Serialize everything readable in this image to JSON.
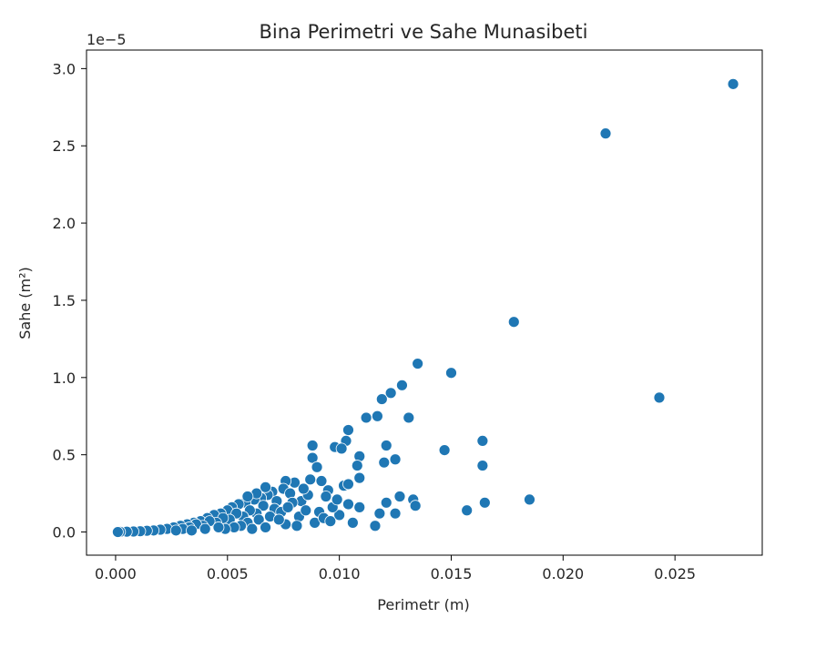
{
  "chart_data": {
    "type": "scatter",
    "title": "Bina Perimetri ve Sahe Munasibeti",
    "xlabel": "Perimetr (m)",
    "ylabel": "Sahe (m²)",
    "y_offset_label": "1e−5",
    "y_multiplier": 1e-05,
    "xlim": [
      -0.0013,
      0.0289
    ],
    "ylim": [
      -1.5e-06,
      3.12e-05
    ],
    "x_ticks": [
      0.0,
      0.005,
      0.01,
      0.015,
      0.02,
      0.025
    ],
    "x_tick_labels": [
      "0.000",
      "0.005",
      "0.010",
      "0.015",
      "0.020",
      "0.025"
    ],
    "y_ticks": [
      0.0,
      5e-06,
      1e-05,
      1.5e-05,
      2e-05,
      2.5e-05,
      3e-05
    ],
    "y_tick_labels": [
      "0.0",
      "0.5",
      "1.0",
      "1.5",
      "2.0",
      "2.5",
      "3.0"
    ],
    "grid": false,
    "legend": "none",
    "marker_color": "#1f77b4",
    "marker_edge": "#ffffff",
    "points": [
      {
        "x": 0.0276,
        "y": 2.9e-05
      },
      {
        "x": 0.0219,
        "y": 2.58e-05
      },
      {
        "x": 0.0178,
        "y": 1.36e-05
      },
      {
        "x": 0.0243,
        "y": 8.7e-06
      },
      {
        "x": 0.0135,
        "y": 1.09e-05
      },
      {
        "x": 0.015,
        "y": 1.03e-05
      },
      {
        "x": 0.0128,
        "y": 9.5e-06
      },
      {
        "x": 0.0123,
        "y": 9e-06
      },
      {
        "x": 0.0119,
        "y": 8.6e-06
      },
      {
        "x": 0.0131,
        "y": 7.4e-06
      },
      {
        "x": 0.0117,
        "y": 7.5e-06
      },
      {
        "x": 0.0112,
        "y": 7.4e-06
      },
      {
        "x": 0.0104,
        "y": 6.6e-06
      },
      {
        "x": 0.0103,
        "y": 5.9e-06
      },
      {
        "x": 0.0088,
        "y": 5.6e-06
      },
      {
        "x": 0.0098,
        "y": 5.5e-06
      },
      {
        "x": 0.0101,
        "y": 5.4e-06
      },
      {
        "x": 0.0121,
        "y": 5.6e-06
      },
      {
        "x": 0.0164,
        "y": 5.9e-06
      },
      {
        "x": 0.0147,
        "y": 5.3e-06
      },
      {
        "x": 0.0109,
        "y": 4.9e-06
      },
      {
        "x": 0.0088,
        "y": 4.8e-06
      },
      {
        "x": 0.0125,
        "y": 4.7e-06
      },
      {
        "x": 0.012,
        "y": 4.5e-06
      },
      {
        "x": 0.0164,
        "y": 4.3e-06
      },
      {
        "x": 0.0108,
        "y": 4.3e-06
      },
      {
        "x": 0.009,
        "y": 4.2e-06
      },
      {
        "x": 0.0109,
        "y": 3.5e-06
      },
      {
        "x": 0.0087,
        "y": 3.4e-06
      },
      {
        "x": 0.0092,
        "y": 3.3e-06
      },
      {
        "x": 0.0102,
        "y": 3e-06
      },
      {
        "x": 0.0104,
        "y": 3.1e-06
      },
      {
        "x": 0.0095,
        "y": 2.7e-06
      },
      {
        "x": 0.0127,
        "y": 2.3e-06
      },
      {
        "x": 0.0133,
        "y": 2.1e-06
      },
      {
        "x": 0.0134,
        "y": 1.7e-06
      },
      {
        "x": 0.0121,
        "y": 1.9e-06
      },
      {
        "x": 0.0104,
        "y": 1.8e-06
      },
      {
        "x": 0.0109,
        "y": 1.6e-06
      },
      {
        "x": 0.0165,
        "y": 1.9e-06
      },
      {
        "x": 0.0185,
        "y": 2.1e-06
      },
      {
        "x": 0.0157,
        "y": 1.4e-06
      },
      {
        "x": 0.0125,
        "y": 1.2e-06
      },
      {
        "x": 0.0118,
        "y": 1.2e-06
      },
      {
        "x": 0.01,
        "y": 1.1e-06
      },
      {
        "x": 0.0091,
        "y": 1.3e-06
      },
      {
        "x": 0.0097,
        "y": 1.6e-06
      },
      {
        "x": 0.0116,
        "y": 4e-07
      },
      {
        "x": 0.0106,
        "y": 6e-07
      },
      {
        "x": 0.0083,
        "y": 2e-06
      },
      {
        "x": 0.008,
        "y": 3.2e-06
      },
      {
        "x": 0.0076,
        "y": 3.3e-06
      },
      {
        "x": 0.0075,
        "y": 2.8e-06
      },
      {
        "x": 0.007,
        "y": 2.6e-06
      },
      {
        "x": 0.0068,
        "y": 2.4e-06
      },
      {
        "x": 0.0065,
        "y": 2.2e-06
      },
      {
        "x": 0.0062,
        "y": 2.1e-06
      },
      {
        "x": 0.0058,
        "y": 1.9e-06
      },
      {
        "x": 0.0055,
        "y": 1.8e-06
      },
      {
        "x": 0.0052,
        "y": 1.6e-06
      },
      {
        "x": 0.005,
        "y": 1.4e-06
      },
      {
        "x": 0.0047,
        "y": 1.2e-06
      },
      {
        "x": 0.0044,
        "y": 1.1e-06
      },
      {
        "x": 0.0041,
        "y": 9e-07
      },
      {
        "x": 0.0038,
        "y": 7e-07
      },
      {
        "x": 0.0035,
        "y": 6e-07
      },
      {
        "x": 0.0032,
        "y": 5e-07
      },
      {
        "x": 0.0029,
        "y": 4e-07
      },
      {
        "x": 0.0026,
        "y": 3e-07
      },
      {
        "x": 0.0023,
        "y": 2e-07
      },
      {
        "x": 0.002,
        "y": 1.5e-07
      },
      {
        "x": 0.0017,
        "y": 1e-07
      },
      {
        "x": 0.0014,
        "y": 8e-08
      },
      {
        "x": 0.0011,
        "y": 5e-08
      },
      {
        "x": 0.0008,
        "y": 3e-08
      },
      {
        "x": 0.0005,
        "y": 2e-08
      },
      {
        "x": 0.0002,
        "y": 1e-08
      },
      {
        "x": 0.0001,
        "y": 0.0
      },
      {
        "x": 0.0072,
        "y": 2e-06
      },
      {
        "x": 0.0071,
        "y": 1.5e-06
      },
      {
        "x": 0.0066,
        "y": 1.7e-06
      },
      {
        "x": 0.0063,
        "y": 1.2e-06
      },
      {
        "x": 0.006,
        "y": 1.4e-06
      },
      {
        "x": 0.0057,
        "y": 1e-06
      },
      {
        "x": 0.0054,
        "y": 1.2e-06
      },
      {
        "x": 0.0051,
        "y": 8e-07
      },
      {
        "x": 0.0048,
        "y": 9e-07
      },
      {
        "x": 0.0045,
        "y": 6e-07
      },
      {
        "x": 0.0042,
        "y": 7e-07
      },
      {
        "x": 0.0039,
        "y": 4e-07
      },
      {
        "x": 0.0036,
        "y": 5e-07
      },
      {
        "x": 0.0033,
        "y": 3e-07
      },
      {
        "x": 0.003,
        "y": 2e-07
      },
      {
        "x": 0.0027,
        "y": 1e-07
      },
      {
        "x": 0.0078,
        "y": 2.5e-06
      },
      {
        "x": 0.0079,
        "y": 1.9e-06
      },
      {
        "x": 0.0074,
        "y": 1.3e-06
      },
      {
        "x": 0.0069,
        "y": 1e-06
      },
      {
        "x": 0.0064,
        "y": 8e-07
      },
      {
        "x": 0.0059,
        "y": 6e-07
      },
      {
        "x": 0.0056,
        "y": 4e-07
      },
      {
        "x": 0.0053,
        "y": 3e-07
      },
      {
        "x": 0.0049,
        "y": 2e-07
      },
      {
        "x": 0.0082,
        "y": 1e-06
      },
      {
        "x": 0.0085,
        "y": 1.4e-06
      },
      {
        "x": 0.0086,
        "y": 2.4e-06
      },
      {
        "x": 0.0081,
        "y": 4e-07
      },
      {
        "x": 0.0076,
        "y": 5e-07
      },
      {
        "x": 0.0073,
        "y": 8e-07
      },
      {
        "x": 0.0067,
        "y": 3e-07
      },
      {
        "x": 0.0061,
        "y": 2e-07
      },
      {
        "x": 0.0046,
        "y": 3e-07
      },
      {
        "x": 0.004,
        "y": 2e-07
      },
      {
        "x": 0.0034,
        "y": 1e-07
      },
      {
        "x": 0.0089,
        "y": 6e-07
      },
      {
        "x": 0.0093,
        "y": 9e-07
      },
      {
        "x": 0.0096,
        "y": 7e-07
      },
      {
        "x": 0.0099,
        "y": 2.1e-06
      },
      {
        "x": 0.0094,
        "y": 2.3e-06
      },
      {
        "x": 0.0077,
        "y": 1.6e-06
      },
      {
        "x": 0.0084,
        "y": 2.8e-06
      },
      {
        "x": 0.0067,
        "y": 2.9e-06
      },
      {
        "x": 0.0063,
        "y": 2.5e-06
      },
      {
        "x": 0.0059,
        "y": 2.3e-06
      }
    ]
  }
}
